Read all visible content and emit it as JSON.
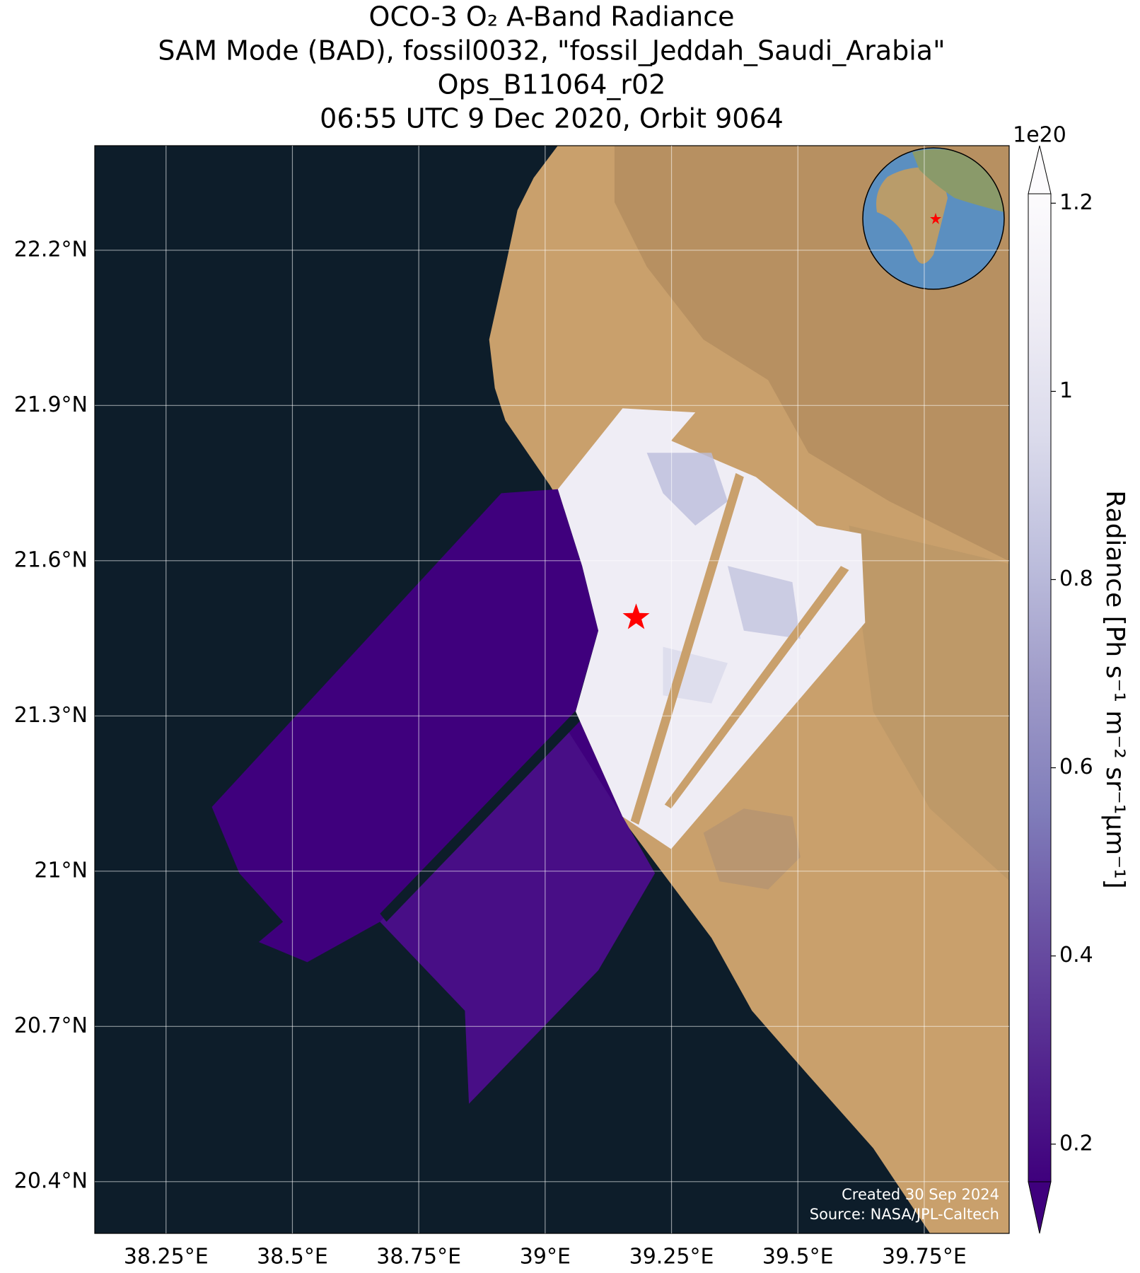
{
  "chart_data": {
    "type": "map",
    "title": [
      "OCO-3 O₂ A-Band Radiance",
      "SAM Mode (BAD), fossil0032, \"fossil_Jeddah_Saudi_Arabia\"",
      "Ops_B11064_r02",
      "06:55 UTC 9 Dec 2020, Orbit 9064"
    ],
    "xlim": [
      38.109,
      39.918
    ],
    "ylim": [
      20.3,
      22.402
    ],
    "xticks": [
      {
        "value": 38.25,
        "label": "38.25°E"
      },
      {
        "value": 38.5,
        "label": "38.5°E"
      },
      {
        "value": 38.75,
        "label": "38.75°E"
      },
      {
        "value": 39,
        "label": "39°E"
      },
      {
        "value": 39.25,
        "label": "39.25°E"
      },
      {
        "value": 39.5,
        "label": "39.5°E"
      },
      {
        "value": 39.75,
        "label": "39.75°E"
      }
    ],
    "yticks": [
      {
        "value": 22.2,
        "label": "22.2°N"
      },
      {
        "value": 21.9,
        "label": "21.9°N"
      },
      {
        "value": 21.6,
        "label": "21.6°N"
      },
      {
        "value": 21.3,
        "label": "21.3°N"
      },
      {
        "value": 21,
        "label": "21°N"
      },
      {
        "value": 20.7,
        "label": "20.7°N"
      },
      {
        "value": 20.4,
        "label": "20.4°N"
      }
    ],
    "grid": true,
    "marker": {
      "x": 39.18,
      "y": 21.49,
      "color": "#ff0000"
    },
    "colorbar": {
      "label": "Radiance [Ph s⁻¹ m⁻² sr⁻¹μm⁻¹]",
      "offset_label": "1e20",
      "clim": [
        0.16,
        1.21
      ],
      "ticks": [
        0.2,
        0.4,
        0.6,
        0.8,
        1.0,
        1.2
      ],
      "colors": [
        "#3f007d",
        "#54278f",
        "#6a51a3",
        "#807dba",
        "#9e9ac8",
        "#bcbddc",
        "#dadaeb",
        "#efedf5",
        "#fcfbfd"
      ]
    },
    "credits": [
      "Created 30 Sep 2024",
      "Source: NASA/JPL-Caltech"
    ]
  }
}
